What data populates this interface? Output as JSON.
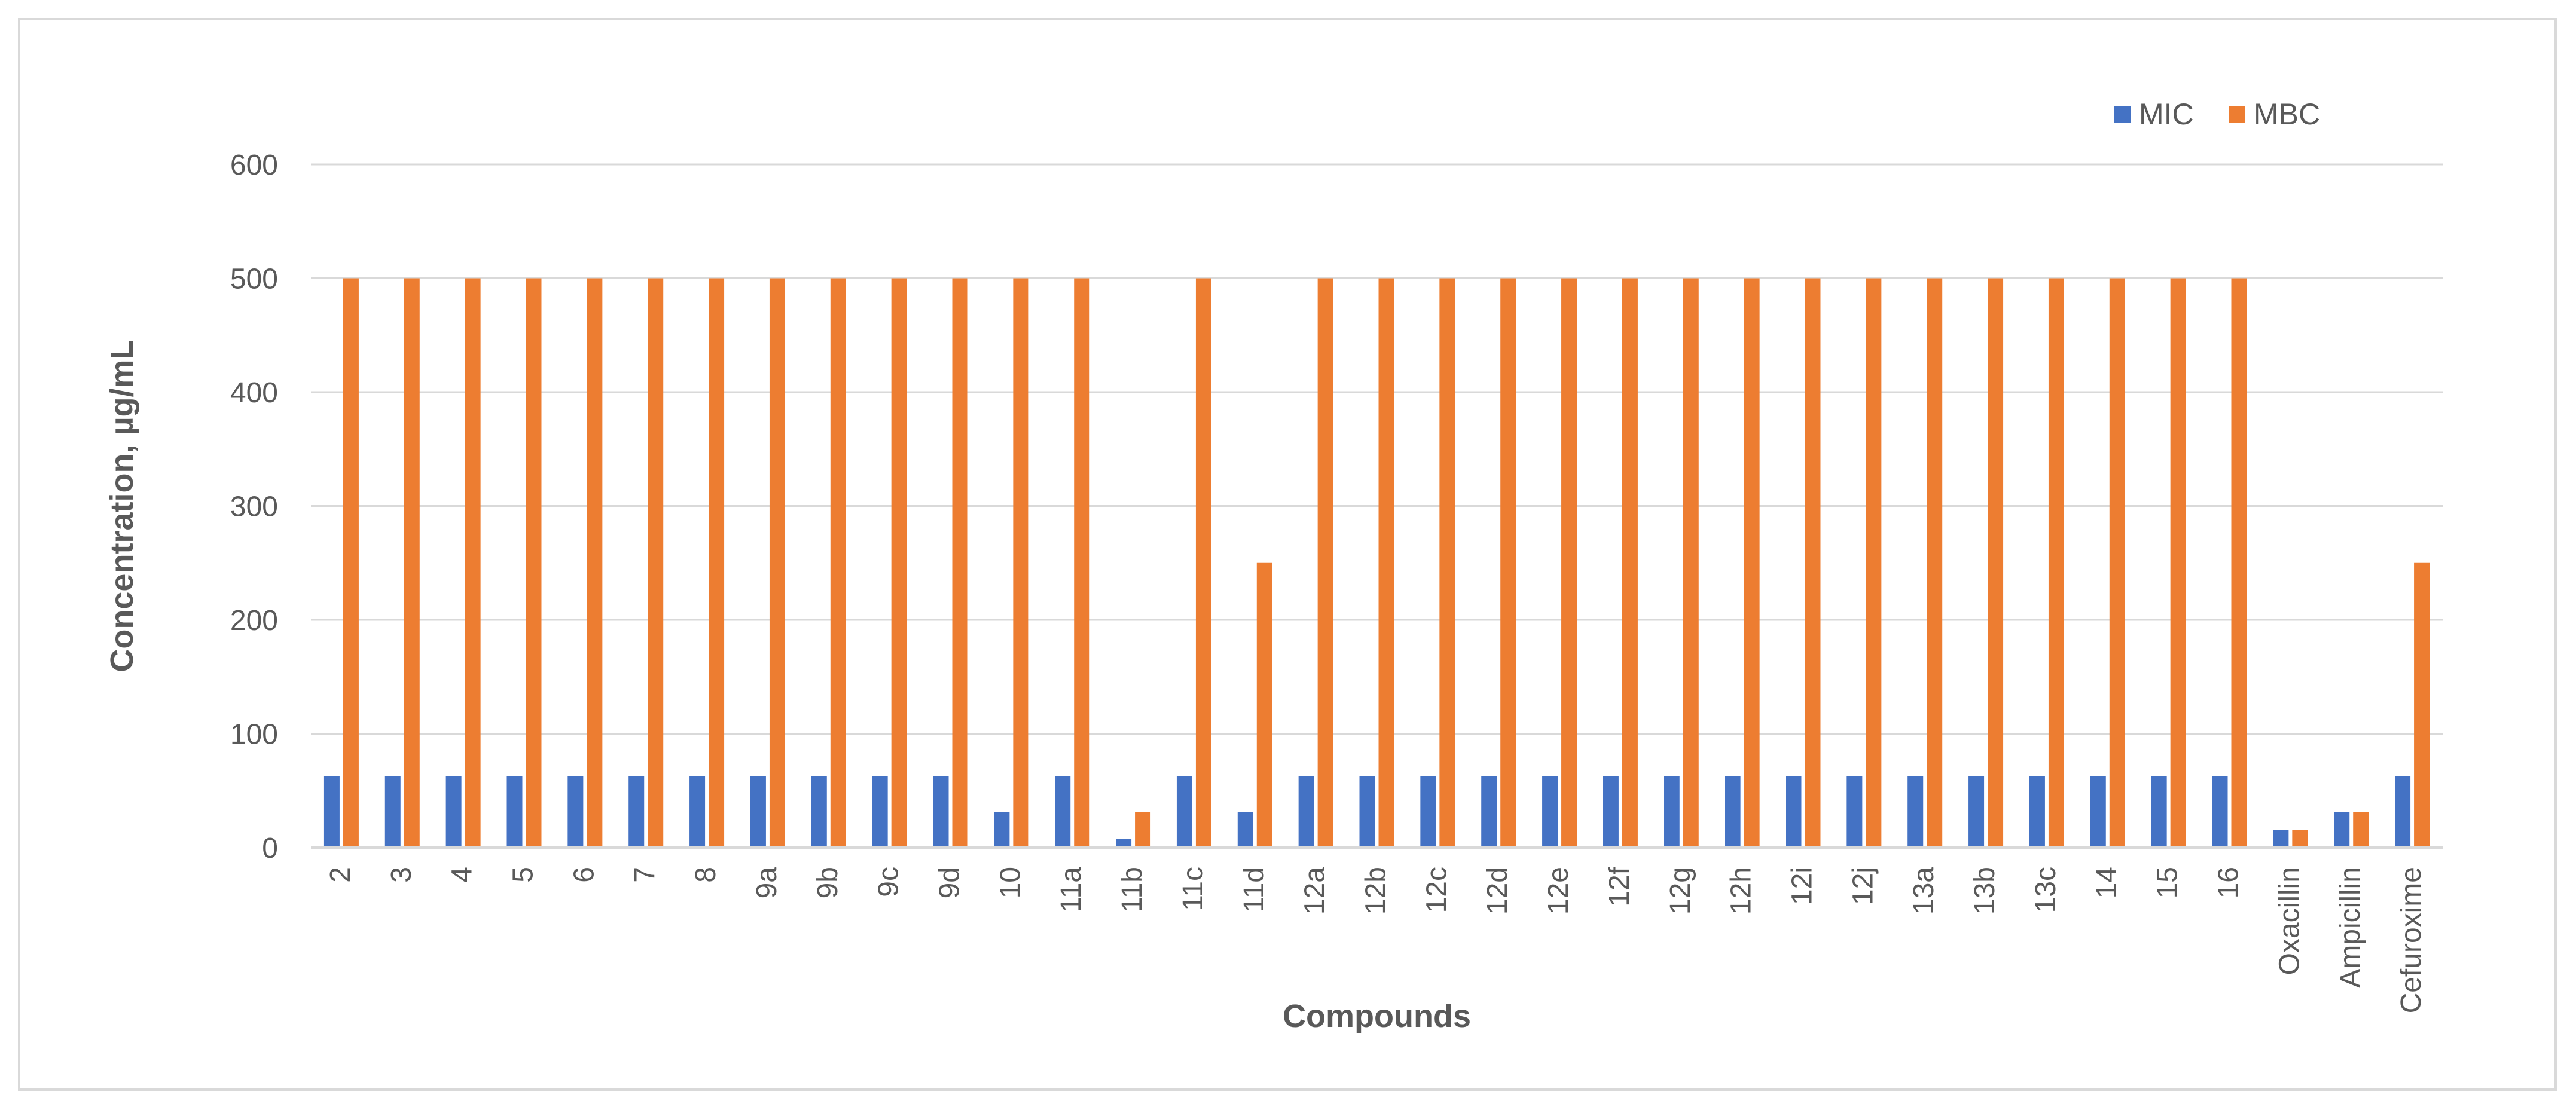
{
  "chart_data": {
    "type": "bar",
    "title": "",
    "xlabel": "Compounds",
    "ylabel": "Concentration, µg/mL",
    "ylim": [
      0,
      600
    ],
    "yticks": [
      0,
      100,
      200,
      300,
      400,
      500,
      600
    ],
    "grid": true,
    "legend_position": "top-right",
    "categories": [
      "2",
      "3",
      "4",
      "5",
      "6",
      "7",
      "8",
      "9a",
      "9b",
      "9c",
      "9d",
      "10",
      "11a",
      "11b",
      "11c",
      "11d",
      "12a",
      "12b",
      "12c",
      "12d",
      "12e",
      "12f",
      "12g",
      "12h",
      "12i",
      "12j",
      "13a",
      "13b",
      "13c",
      "14",
      "15",
      "16",
      "Oxacillin",
      "Ampicillin",
      "Cefuroxime"
    ],
    "series": [
      {
        "name": "MIC",
        "color": "#4472c4",
        "values": [
          62.5,
          62.5,
          62.5,
          62.5,
          62.5,
          62.5,
          62.5,
          62.5,
          62.5,
          62.5,
          62.5,
          31.25,
          62.5,
          7.8,
          62.5,
          31.25,
          62.5,
          62.5,
          62.5,
          62.5,
          62.5,
          62.5,
          62.5,
          62.5,
          62.5,
          62.5,
          62.5,
          62.5,
          62.5,
          62.5,
          62.5,
          62.5,
          15.6,
          31.25,
          62.5
        ]
      },
      {
        "name": "MBC",
        "color": "#ed7d31",
        "values": [
          500,
          500,
          500,
          500,
          500,
          500,
          500,
          500,
          500,
          500,
          500,
          500,
          500,
          31.25,
          500,
          250,
          500,
          500,
          500,
          500,
          500,
          500,
          500,
          500,
          500,
          500,
          500,
          500,
          500,
          500,
          500,
          500,
          15.6,
          31.25,
          250
        ]
      }
    ]
  }
}
